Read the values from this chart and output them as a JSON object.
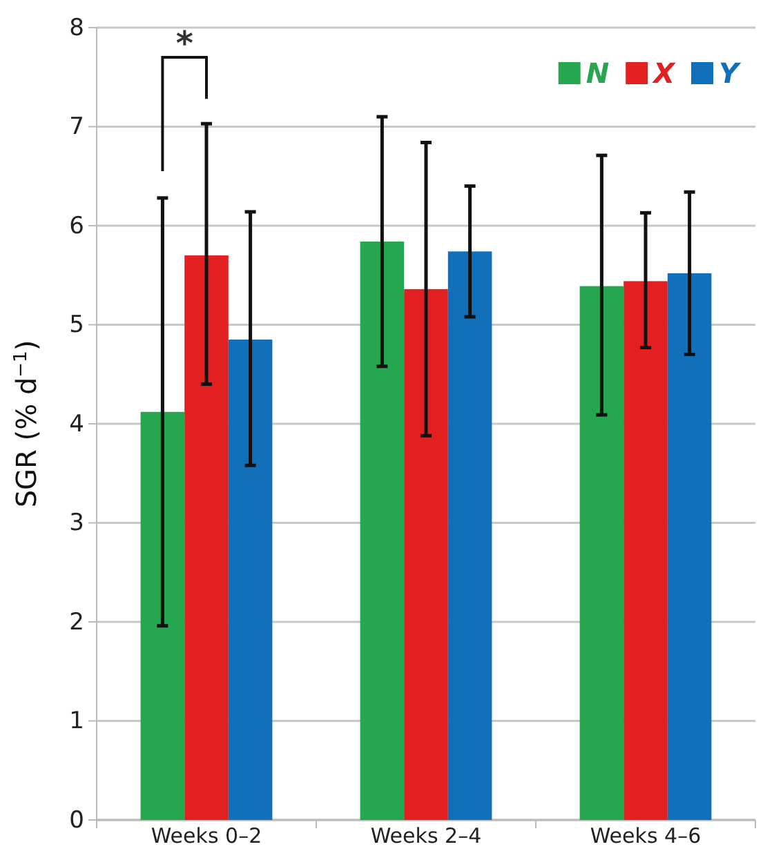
{
  "chart_data": {
    "type": "bar",
    "ylabel": "SGR (% d$^{−1}$)",
    "categories": [
      "Weeks 0–2",
      "Weeks 2–4",
      "Weeks 4–6"
    ],
    "series": [
      {
        "name": "N",
        "color": "#27a650",
        "values": [
          4.12,
          5.84,
          5.39
        ],
        "errors": [
          [
            1.96,
            6.28
          ],
          [
            4.58,
            7.1
          ],
          [
            4.09,
            6.71
          ]
        ]
      },
      {
        "name": "X",
        "color": "#e32021",
        "values": [
          5.7,
          5.36,
          5.44
        ],
        "errors": [
          [
            4.4,
            7.03
          ],
          [
            3.88,
            6.84
          ],
          [
            4.77,
            6.13
          ]
        ]
      },
      {
        "name": "Y",
        "color": "#1170b9",
        "values": [
          4.85,
          5.74,
          5.52
        ],
        "errors": [
          [
            3.58,
            6.14
          ],
          [
            5.08,
            6.4
          ],
          [
            4.7,
            6.34
          ]
        ]
      }
    ],
    "ylim": [
      0,
      8
    ],
    "yticks": [
      0,
      1,
      2,
      3,
      4,
      5,
      6,
      7,
      8
    ],
    "grid": "y",
    "legend": "top right",
    "annotations": [
      "*"
    ]
  }
}
